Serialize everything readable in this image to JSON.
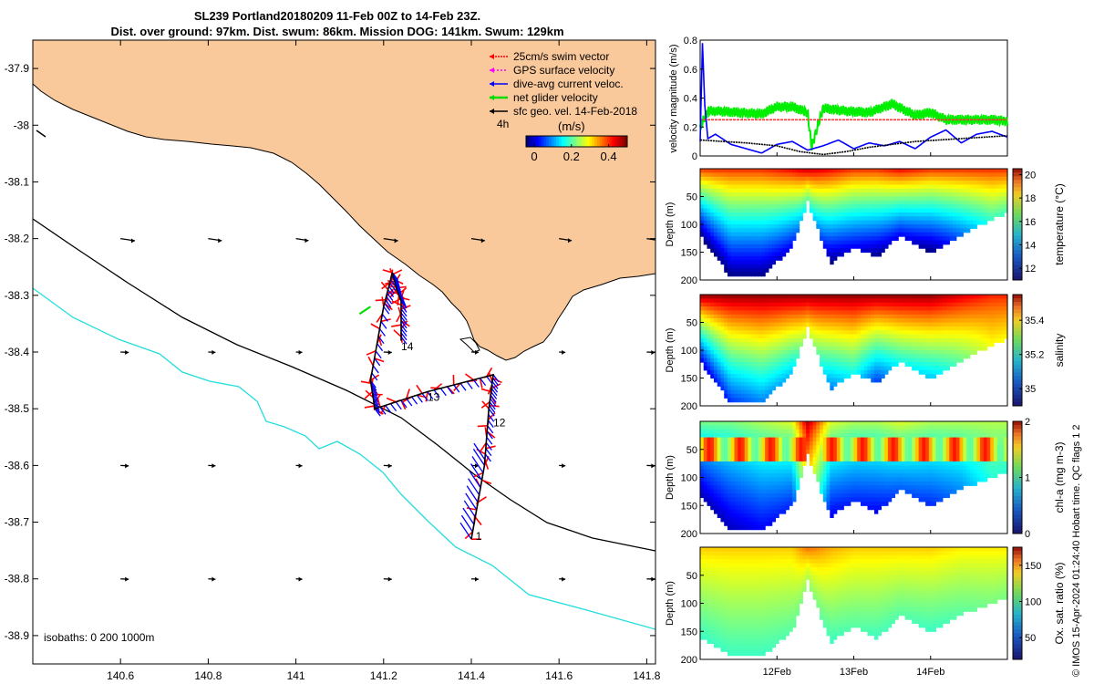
{
  "title": {
    "line1": "SL239 Portland20180209 11-Feb 00Z to 14-Feb 23Z.",
    "line2": "Dist. over ground: 97km. Dist. swum: 86km. Mission DOG: 141km. Swum: 129km"
  },
  "map": {
    "lon_ticks": [
      "140.6",
      "140.8",
      "141",
      "141.2",
      "141.4",
      "141.6",
      "141.8"
    ],
    "lat_ticks": [
      "-37.9",
      "-38",
      "-38.1",
      "-38.2",
      "-38.3",
      "-38.4",
      "-38.5",
      "-38.6",
      "-38.7",
      "-38.8",
      "-38.9"
    ],
    "xlim": [
      140.4,
      141.82
    ],
    "ylim": [
      -38.95,
      -37.85
    ],
    "legend": [
      {
        "label": "25cm/s swim vector",
        "color": "#ff0000"
      },
      {
        "label": "GPS surface velocity",
        "color": "#ff00ff"
      },
      {
        "label": "dive-avg current veloc.",
        "color": "#0000ff"
      },
      {
        "label": "net glider velocity",
        "color": "#00dd00"
      },
      {
        "label": "sfc geo. vel. 14-Feb-2018",
        "color": "#000000"
      }
    ],
    "legend_time": "4h",
    "colorbar_unit": "(m/s)",
    "colorbar_ticks": [
      "0",
      "0.2",
      "0.4"
    ],
    "isobaths_label": "isobaths: 0   200  1000m",
    "day_labels": [
      {
        "text": "14",
        "lon": 141.24,
        "lat": -38.39
      },
      {
        "text": "13",
        "lon": 141.3,
        "lat": -38.48
      },
      {
        "text": "12",
        "lon": 141.45,
        "lat": -38.525
      },
      {
        "text": "1",
        "lon": 141.41,
        "lat": -38.725
      }
    ],
    "colors": {
      "land": "#f9c89b",
      "track_red": "#ff0000",
      "track_blue": "#0000ff",
      "isobath_200": "#000000",
      "isobath_1000": "#22dddd"
    }
  },
  "chart_data": [
    {
      "type": "line",
      "ylabel": "velocity magnitude (m/s)",
      "ylim": [
        0,
        0.8
      ],
      "yticks": [
        "0",
        "0.2",
        "0.4",
        "0.6",
        "0.8"
      ],
      "x_days": [
        11.0,
        15.0
      ],
      "series": [
        {
          "color": "#00ee00",
          "x": [
            11.0,
            11.1,
            11.2,
            11.5,
            11.8,
            12.0,
            12.2,
            12.4,
            12.45,
            12.6,
            12.9,
            13.2,
            13.5,
            13.8,
            14.0,
            14.2,
            14.4,
            14.6,
            14.8,
            15.0
          ],
          "y": [
            0.2,
            0.31,
            0.31,
            0.3,
            0.29,
            0.34,
            0.34,
            0.3,
            0.06,
            0.33,
            0.31,
            0.3,
            0.36,
            0.28,
            0.3,
            0.25,
            0.25,
            0.25,
            0.25,
            0.24
          ]
        },
        {
          "color": "#ff3333",
          "x": [
            11.0,
            15.0
          ],
          "y": [
            0.25,
            0.25
          ]
        },
        {
          "color": "#0000ff",
          "x": [
            11.0,
            11.03,
            11.06,
            11.1,
            11.2,
            11.4,
            11.6,
            11.8,
            12.0,
            12.2,
            12.4,
            12.6,
            12.8,
            13.0,
            13.2,
            13.4,
            13.6,
            13.8,
            14.0,
            14.2,
            14.4,
            14.6,
            14.8,
            15.0
          ],
          "y": [
            0.1,
            0.78,
            0.35,
            0.12,
            0.15,
            0.08,
            0.05,
            0.02,
            0.08,
            0.1,
            0.04,
            0.07,
            0.11,
            0.05,
            0.09,
            0.07,
            0.1,
            0.05,
            0.13,
            0.18,
            0.09,
            0.15,
            0.17,
            0.13
          ]
        },
        {
          "color": "#000000",
          "x": [
            11.0,
            11.3,
            11.6,
            12.0,
            12.3,
            12.6,
            12.9,
            13.2,
            13.5,
            13.8,
            14.1,
            14.4,
            14.7,
            15.0
          ],
          "y": [
            0.11,
            0.1,
            0.09,
            0.07,
            0.03,
            0.01,
            0.03,
            0.06,
            0.08,
            0.1,
            0.11,
            0.12,
            0.13,
            0.14
          ]
        }
      ]
    },
    {
      "type": "heatmap",
      "ylabel": "Depth (m)",
      "clabel": "temperature (°C)",
      "yticks": [
        "50",
        "100",
        "150",
        "200"
      ],
      "cticks": [
        "12",
        "14",
        "16",
        "18",
        "20"
      ],
      "crange": [
        11,
        20.5
      ],
      "depth": [
        0,
        200
      ],
      "days": [
        11.0,
        11.4,
        11.8,
        12.2,
        12.4,
        12.7,
        13.0,
        13.3,
        13.6,
        14.0,
        14.4,
        14.8,
        15.0
      ],
      "max_depth": [
        120,
        195,
        195,
        140,
        60,
        170,
        140,
        160,
        120,
        150,
        120,
        90,
        80
      ],
      "surface": [
        19,
        19,
        19,
        19.5,
        20,
        19.5,
        19,
        19,
        19.5,
        19,
        19,
        19,
        19
      ],
      "deep": [
        11,
        11,
        11,
        12,
        15,
        11,
        12,
        11,
        12,
        11,
        13,
        15,
        15
      ]
    },
    {
      "type": "heatmap",
      "ylabel": "Depth (m)",
      "clabel": "salinity",
      "yticks": [
        "50",
        "100",
        "150",
        "200"
      ],
      "cticks": [
        "35",
        "35.2",
        "35.4"
      ],
      "crange": [
        34.9,
        35.55
      ],
      "depth": [
        0,
        200
      ],
      "days": [
        11.0,
        11.4,
        11.8,
        12.2,
        12.4,
        12.7,
        13.0,
        13.3,
        13.6,
        14.0,
        14.4,
        14.8,
        15.0
      ],
      "max_depth": [
        120,
        195,
        195,
        140,
        60,
        170,
        140,
        160,
        120,
        150,
        120,
        90,
        80
      ],
      "surface": [
        35.55,
        35.55,
        35.55,
        35.55,
        35.55,
        35.55,
        35.55,
        35.55,
        35.55,
        35.55,
        35.5,
        35.45,
        35.45
      ],
      "deep": [
        34.95,
        35.0,
        35.05,
        35.1,
        35.3,
        35.05,
        35.15,
        35.0,
        35.15,
        35.1,
        35.2,
        35.3,
        35.3
      ]
    },
    {
      "type": "heatmap",
      "ylabel": "Depth (m)",
      "clabel": "chl-a (mg m-3)",
      "yticks": [
        "50",
        "100",
        "150",
        "200"
      ],
      "cticks": [
        "0",
        "1",
        "2"
      ],
      "crange": [
        0,
        2
      ],
      "depth": [
        0,
        200
      ],
      "days": [
        11.0,
        11.4,
        11.8,
        12.2,
        12.4,
        12.7,
        13.0,
        13.3,
        13.6,
        14.0,
        14.4,
        14.8,
        15.0
      ],
      "max_depth": [
        130,
        195,
        195,
        150,
        60,
        170,
        140,
        165,
        120,
        150,
        120,
        100,
        90
      ],
      "surface": [
        1.0,
        1.0,
        1.1,
        1.2,
        1.9,
        1.2,
        1.1,
        1.1,
        1.2,
        1.1,
        1.1,
        1.1,
        1.1
      ],
      "deep": [
        0.1,
        0.1,
        0.2,
        0.3,
        1.5,
        0.2,
        0.3,
        0.2,
        0.4,
        0.3,
        0.5,
        0.8,
        0.8
      ]
    },
    {
      "type": "heatmap",
      "ylabel": "Depth (m)",
      "clabel": "Ox. sat. ratio (%)",
      "yticks": [
        "50",
        "100",
        "150",
        "200"
      ],
      "cticks": [
        "50",
        "100",
        "150"
      ],
      "crange": [
        20,
        175
      ],
      "depth": [
        0,
        200
      ],
      "days": [
        11.0,
        11.4,
        11.8,
        12.2,
        12.4,
        12.7,
        13.0,
        13.3,
        13.6,
        14.0,
        14.4,
        14.8,
        15.0
      ],
      "max_depth": [
        160,
        195,
        195,
        150,
        60,
        170,
        140,
        165,
        120,
        150,
        120,
        100,
        90
      ],
      "surface": [
        125,
        125,
        125,
        125,
        140,
        130,
        125,
        125,
        125,
        125,
        120,
        120,
        120
      ],
      "deep": [
        85,
        85,
        85,
        90,
        100,
        85,
        90,
        85,
        90,
        85,
        90,
        95,
        95
      ]
    }
  ],
  "time_axis": {
    "ticks": [
      {
        "label": "12Feb",
        "day": 12
      },
      {
        "label": "13Feb",
        "day": 13
      },
      {
        "label": "14Feb",
        "day": 14
      }
    ]
  },
  "side_note": "© IMOS 15-Apr-2024 01:24:40 Hobart time. QC flags 1  2"
}
